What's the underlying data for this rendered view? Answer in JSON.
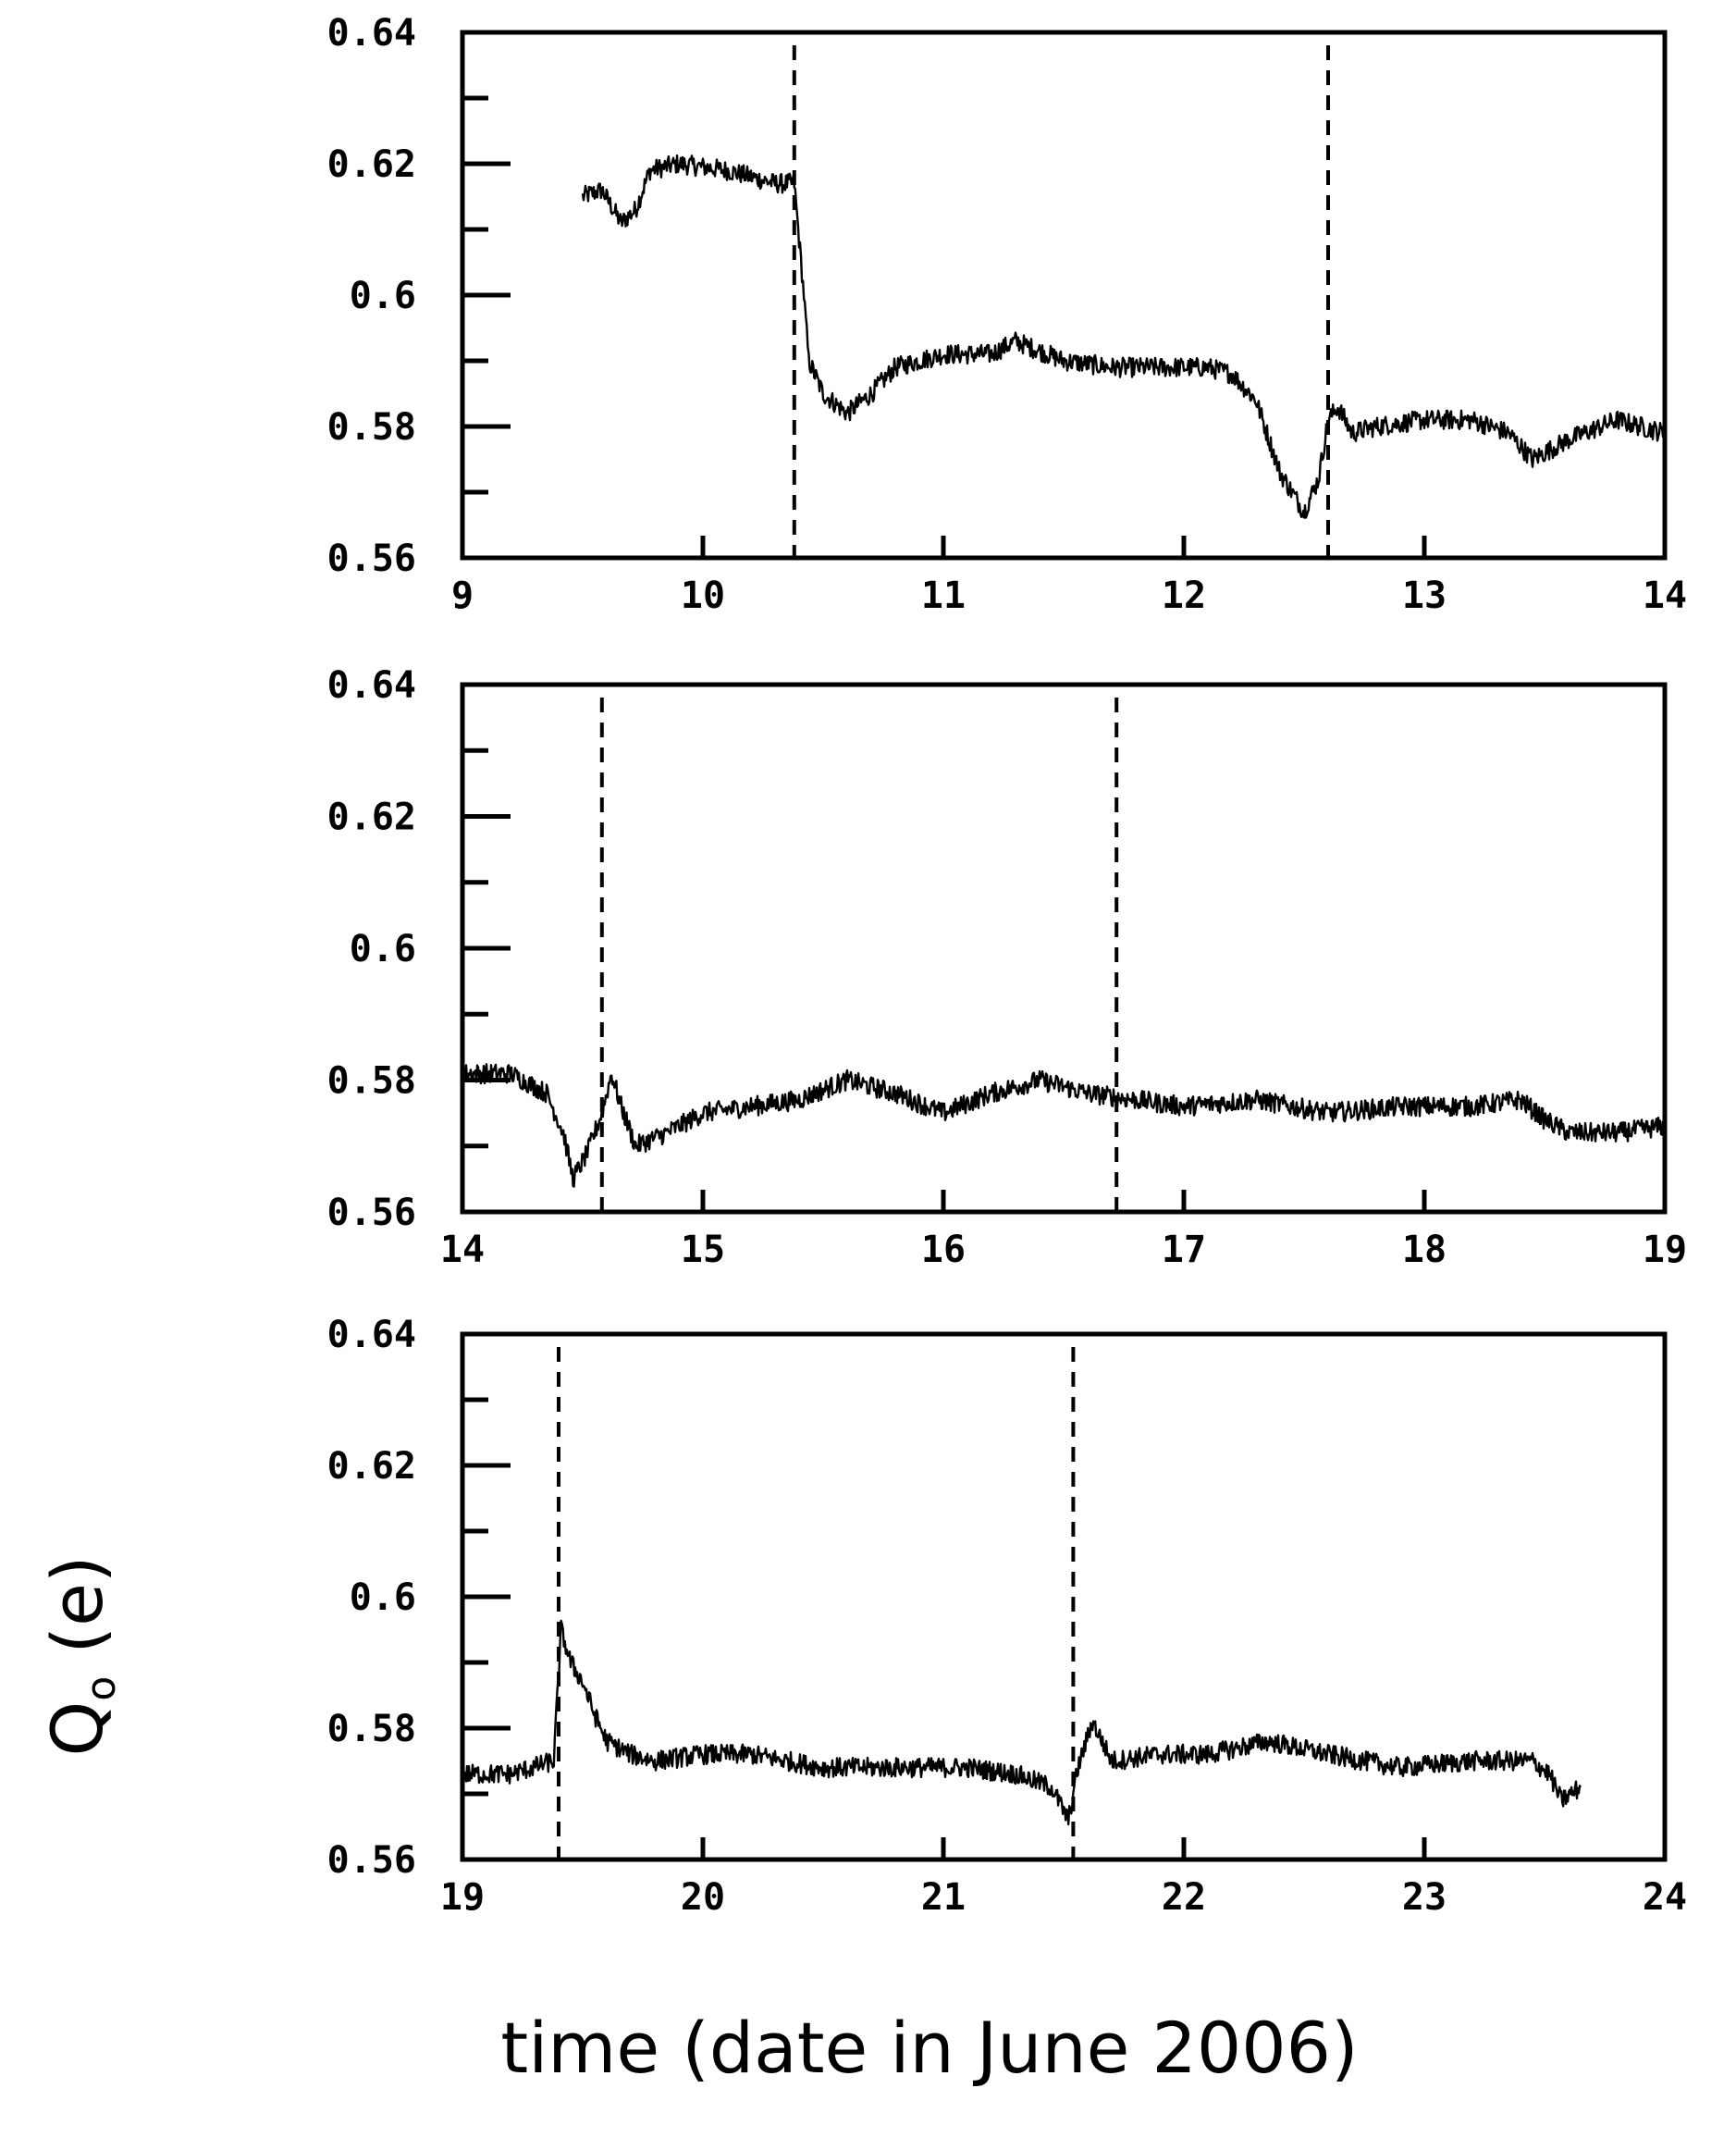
{
  "chart_data": [
    {
      "type": "line",
      "xlim": [
        9,
        14
      ],
      "ylim": [
        0.56,
        0.64
      ],
      "xticks": [
        9,
        10,
        11,
        12,
        13,
        14
      ],
      "yticks": [
        0.56,
        0.58,
        0.6,
        0.62,
        0.64
      ],
      "xtick_labels": [
        "9",
        "10",
        "11",
        "12",
        "13",
        "14"
      ],
      "ytick_labels": [
        "0.56",
        "0.58",
        "0.6",
        "0.62",
        "0.64"
      ],
      "vlines": [
        10.38,
        12.6
      ],
      "series": [
        {
          "x": [
            9.5,
            9.58,
            9.66,
            9.72,
            9.78,
            9.9,
            10.1,
            10.3,
            10.38,
            10.42,
            10.44,
            10.5,
            10.6,
            10.7,
            10.8,
            11.0,
            11.2,
            11.3,
            11.5,
            11.7,
            11.9,
            12.1,
            12.2,
            12.3,
            12.4,
            12.5,
            12.56,
            12.6,
            12.64,
            12.7,
            12.8,
            13.0,
            13.2,
            13.35,
            13.45,
            13.6,
            13.8,
            14.0
          ],
          "y": [
            0.615,
            0.616,
            0.611,
            0.613,
            0.619,
            0.62,
            0.619,
            0.617,
            0.617,
            0.6,
            0.59,
            0.585,
            0.582,
            0.585,
            0.589,
            0.591,
            0.591,
            0.593,
            0.59,
            0.589,
            0.589,
            0.589,
            0.588,
            0.584,
            0.573,
            0.567,
            0.572,
            0.581,
            0.583,
            0.579,
            0.58,
            0.581,
            0.581,
            0.579,
            0.575,
            0.578,
            0.581,
            0.579
          ],
          "noise": 0.0015
        }
      ]
    },
    {
      "type": "line",
      "xlim": [
        14,
        19
      ],
      "ylim": [
        0.56,
        0.64
      ],
      "xticks": [
        14,
        15,
        16,
        17,
        18,
        19
      ],
      "yticks": [
        0.56,
        0.58,
        0.6,
        0.62,
        0.64
      ],
      "xtick_labels": [
        "14",
        "15",
        "16",
        "17",
        "18",
        "19"
      ],
      "ytick_labels": [
        "0.56",
        "0.58",
        "0.6",
        "0.62",
        "0.64"
      ],
      "vlines": [
        14.58,
        16.72
      ],
      "series": [
        {
          "x": [
            14.0,
            14.2,
            14.35,
            14.42,
            14.46,
            14.52,
            14.58,
            14.62,
            14.66,
            14.72,
            14.85,
            15.0,
            15.2,
            15.4,
            15.6,
            15.8,
            16.0,
            16.2,
            16.4,
            16.6,
            16.8,
            17.0,
            17.3,
            17.6,
            17.9,
            18.2,
            18.4,
            18.5,
            18.6,
            18.8,
            19.0
          ],
          "y": [
            0.581,
            0.581,
            0.578,
            0.572,
            0.565,
            0.569,
            0.575,
            0.581,
            0.576,
            0.57,
            0.572,
            0.575,
            0.576,
            0.577,
            0.58,
            0.578,
            0.575,
            0.578,
            0.58,
            0.578,
            0.577,
            0.576,
            0.577,
            0.575,
            0.576,
            0.576,
            0.577,
            0.574,
            0.572,
            0.572,
            0.573
          ],
          "noise": 0.0015
        }
      ]
    },
    {
      "type": "line",
      "xlim": [
        19,
        24
      ],
      "ylim": [
        0.56,
        0.64
      ],
      "xticks": [
        19,
        20,
        21,
        22,
        23,
        24
      ],
      "yticks": [
        0.56,
        0.58,
        0.6,
        0.62,
        0.64
      ],
      "xtick_labels": [
        "19",
        "20",
        "21",
        "22",
        "23",
        "24"
      ],
      "ytick_labels": [
        "0.56",
        "0.58",
        "0.6",
        "0.62",
        "0.64"
      ],
      "vlines": [
        19.4,
        21.54
      ],
      "series": [
        {
          "x": [
            19.0,
            19.2,
            19.38,
            19.41,
            19.45,
            19.5,
            19.55,
            19.6,
            19.7,
            19.8,
            20.0,
            20.2,
            20.5,
            20.8,
            21.1,
            21.3,
            21.45,
            21.52,
            21.56,
            21.62,
            21.7,
            21.9,
            22.1,
            22.35,
            22.6,
            22.9,
            23.2,
            23.45,
            23.52,
            23.57,
            23.65
          ],
          "y": [
            0.573,
            0.573,
            0.575,
            0.595,
            0.59,
            0.587,
            0.582,
            0.578,
            0.576,
            0.575,
            0.576,
            0.576,
            0.574,
            0.574,
            0.574,
            0.573,
            0.571,
            0.566,
            0.574,
            0.581,
            0.575,
            0.576,
            0.576,
            0.578,
            0.576,
            0.574,
            0.575,
            0.575,
            0.573,
            0.569,
            0.571
          ],
          "noise": 0.0015
        }
      ]
    }
  ],
  "xlabel": "time (date in June 2006)",
  "ylabel": "Q",
  "ylabel_subscript": "o",
  "ylabel_unit": "(e)"
}
